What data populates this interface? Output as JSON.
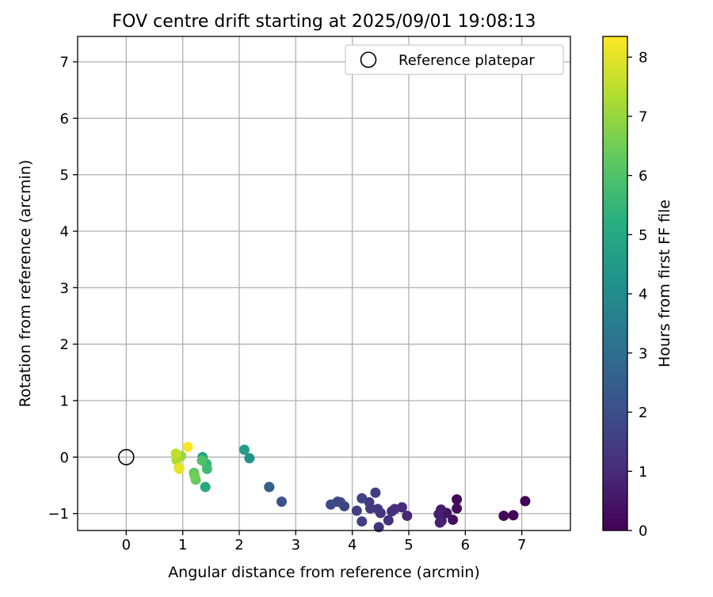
{
  "chart_data": {
    "type": "scatter",
    "title": "FOV centre drift starting at 2025/09/01 19:08:13",
    "xlabel": "Angular distance from reference (arcmin)",
    "ylabel": "Rotation from reference (arcmin)",
    "xlim": [
      -0.86,
      7.86
    ],
    "ylim": [
      -1.3,
      7.45
    ],
    "xticks": [
      0,
      1,
      2,
      3,
      4,
      5,
      6,
      7
    ],
    "yticks": [
      -1,
      0,
      1,
      2,
      3,
      4,
      5,
      6,
      7
    ],
    "grid": true,
    "legend": {
      "position": "top-right",
      "entries": [
        "Reference platepar"
      ]
    },
    "reference_point": {
      "x": 0,
      "y": 0,
      "label": "Reference platepar"
    },
    "colorbar": {
      "label": "Hours from first FF file",
      "range": [
        0,
        8.35
      ],
      "ticks": [
        0,
        1,
        2,
        3,
        4,
        5,
        6,
        7,
        8
      ],
      "colormap": "viridis"
    },
    "points": [
      {
        "x": 7.06,
        "y": -0.78,
        "h": 0.05
      },
      {
        "x": 6.85,
        "y": -1.03,
        "h": 0.1
      },
      {
        "x": 6.68,
        "y": -1.04,
        "h": 0.15
      },
      {
        "x": 5.85,
        "y": -0.75,
        "h": 0.2
      },
      {
        "x": 5.85,
        "y": -0.91,
        "h": 0.25
      },
      {
        "x": 5.78,
        "y": -1.11,
        "h": 0.35
      },
      {
        "x": 5.67,
        "y": -0.99,
        "h": 0.45
      },
      {
        "x": 5.58,
        "y": -1.13,
        "h": 0.55
      },
      {
        "x": 5.57,
        "y": -0.93,
        "h": 0.65
      },
      {
        "x": 5.53,
        "y": -1.01,
        "h": 0.7
      },
      {
        "x": 5.55,
        "y": -1.16,
        "h": 0.8
      },
      {
        "x": 4.97,
        "y": -1.04,
        "h": 0.9
      },
      {
        "x": 4.88,
        "y": -0.89,
        "h": 1.0
      },
      {
        "x": 4.75,
        "y": -0.92,
        "h": 1.05
      },
      {
        "x": 4.7,
        "y": -0.96,
        "h": 1.1
      },
      {
        "x": 4.64,
        "y": -1.12,
        "h": 1.15
      },
      {
        "x": 4.5,
        "y": -0.99,
        "h": 1.2
      },
      {
        "x": 4.47,
        "y": -1.24,
        "h": 1.25
      },
      {
        "x": 4.45,
        "y": -0.92,
        "h": 1.35
      },
      {
        "x": 4.32,
        "y": -0.91,
        "h": 1.4
      },
      {
        "x": 4.3,
        "y": -0.8,
        "h": 1.45
      },
      {
        "x": 4.41,
        "y": -0.63,
        "h": 1.5
      },
      {
        "x": 4.17,
        "y": -1.14,
        "h": 1.55
      },
      {
        "x": 4.08,
        "y": -0.95,
        "h": 1.6
      },
      {
        "x": 4.17,
        "y": -0.73,
        "h": 1.65
      },
      {
        "x": 3.86,
        "y": -0.87,
        "h": 1.7
      },
      {
        "x": 3.79,
        "y": -0.8,
        "h": 1.75
      },
      {
        "x": 3.74,
        "y": -0.79,
        "h": 1.8
      },
      {
        "x": 3.62,
        "y": -0.84,
        "h": 1.85
      },
      {
        "x": 2.75,
        "y": -0.79,
        "h": 2.05
      },
      {
        "x": 2.53,
        "y": -0.53,
        "h": 2.35
      },
      {
        "x": 2.53,
        "y": -0.53,
        "h": 2.55
      },
      {
        "x": 2.18,
        "y": -0.02,
        "h": 4.25
      },
      {
        "x": 2.09,
        "y": 0.13,
        "h": 4.6
      },
      {
        "x": 1.35,
        "y": 0.0,
        "h": 4.85
      },
      {
        "x": 1.4,
        "y": -0.53,
        "h": 5.0
      },
      {
        "x": 1.42,
        "y": -0.12,
        "h": 5.45
      },
      {
        "x": 1.43,
        "y": -0.21,
        "h": 5.7
      },
      {
        "x": 1.34,
        "y": -0.06,
        "h": 6.0
      },
      {
        "x": 1.2,
        "y": -0.28,
        "h": 6.2
      },
      {
        "x": 1.23,
        "y": -0.4,
        "h": 6.35
      },
      {
        "x": 1.21,
        "y": -0.33,
        "h": 6.5
      },
      {
        "x": 0.97,
        "y": 0.02,
        "h": 7.0
      },
      {
        "x": 0.89,
        "y": -0.05,
        "h": 7.3
      },
      {
        "x": 0.88,
        "y": 0.06,
        "h": 7.55
      },
      {
        "x": 0.93,
        "y": -0.19,
        "h": 7.9
      },
      {
        "x": 0.94,
        "y": -0.21,
        "h": 8.1
      },
      {
        "x": 1.09,
        "y": 0.18,
        "h": 8.3
      }
    ]
  }
}
